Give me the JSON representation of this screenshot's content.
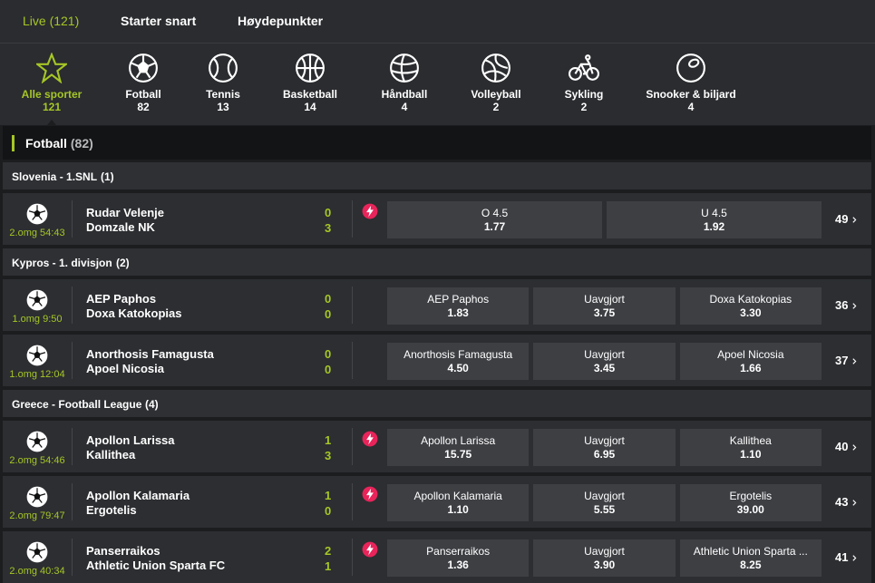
{
  "tabs": [
    "Live (121)",
    "Starter snart",
    "Høydepunkter"
  ],
  "active_tab": 0,
  "sports": [
    {
      "name": "Alle sporter",
      "count": 121
    },
    {
      "name": "Fotball",
      "count": 82
    },
    {
      "name": "Tennis",
      "count": 13
    },
    {
      "name": "Basketball",
      "count": 14
    },
    {
      "name": "Håndball",
      "count": 4
    },
    {
      "name": "Volleyball",
      "count": 2
    },
    {
      "name": "Sykling",
      "count": 2
    },
    {
      "name": "Snooker & biljard",
      "count": 4
    }
  ],
  "active_sport": 0,
  "section": {
    "title": "Fotball",
    "count": "(82)"
  },
  "leagues": [
    {
      "name": "Slovenia - 1.SNL",
      "count": "(1)",
      "matches": [
        {
          "time": "2.omg 54:43",
          "home": "Rudar Velenje",
          "away": "Domzale NK",
          "score_home": 0,
          "score_away": 3,
          "live": true,
          "odds": [
            {
              "label": "O 4.5",
              "value": "1.77"
            },
            {
              "label": "U 4.5",
              "value": "1.92"
            }
          ],
          "more": 49
        }
      ]
    },
    {
      "name": "Kypros - 1. divisjon",
      "count": "(2)",
      "matches": [
        {
          "time": "1.omg 9:50",
          "home": "AEP Paphos",
          "away": "Doxa Katokopias",
          "score_home": 0,
          "score_away": 0,
          "live": false,
          "odds": [
            {
              "label": "AEP Paphos",
              "value": "1.83"
            },
            {
              "label": "Uavgjort",
              "value": "3.75"
            },
            {
              "label": "Doxa Katokopias",
              "value": "3.30"
            }
          ],
          "more": 36
        },
        {
          "time": "1.omg 12:04",
          "home": "Anorthosis Famagusta",
          "away": "Apoel Nicosia",
          "score_home": 0,
          "score_away": 0,
          "live": false,
          "odds": [
            {
              "label": "Anorthosis Famagusta",
              "value": "4.50"
            },
            {
              "label": "Uavgjort",
              "value": "3.45"
            },
            {
              "label": "Apoel Nicosia",
              "value": "1.66"
            }
          ],
          "more": 37
        }
      ]
    },
    {
      "name": "Greece - Football League",
      "count": "(4)",
      "matches": [
        {
          "time": "2.omg 54:46",
          "home": "Apollon Larissa",
          "away": "Kallithea",
          "score_home": 1,
          "score_away": 3,
          "live": true,
          "odds": [
            {
              "label": "Apollon Larissa",
              "value": "15.75"
            },
            {
              "label": "Uavgjort",
              "value": "6.95"
            },
            {
              "label": "Kallithea",
              "value": "1.10"
            }
          ],
          "more": 40
        },
        {
          "time": "2.omg 79:47",
          "home": "Apollon Kalamaria",
          "away": "Ergotelis",
          "score_home": 1,
          "score_away": 0,
          "live": true,
          "odds": [
            {
              "label": "Apollon Kalamaria",
              "value": "1.10"
            },
            {
              "label": "Uavgjort",
              "value": "5.55"
            },
            {
              "label": "Ergotelis",
              "value": "39.00"
            }
          ],
          "more": 43
        },
        {
          "time": "2.omg 40:34",
          "home": "Panserraikos",
          "away": "Athletic Union Sparta FC",
          "score_home": 2,
          "score_away": 1,
          "live": true,
          "odds": [
            {
              "label": "Panserraikos",
              "value": "1.36"
            },
            {
              "label": "Uavgjort",
              "value": "3.90"
            },
            {
              "label": "Athletic Union Sparta ...",
              "value": "8.25"
            }
          ],
          "more": 41
        }
      ]
    }
  ]
}
